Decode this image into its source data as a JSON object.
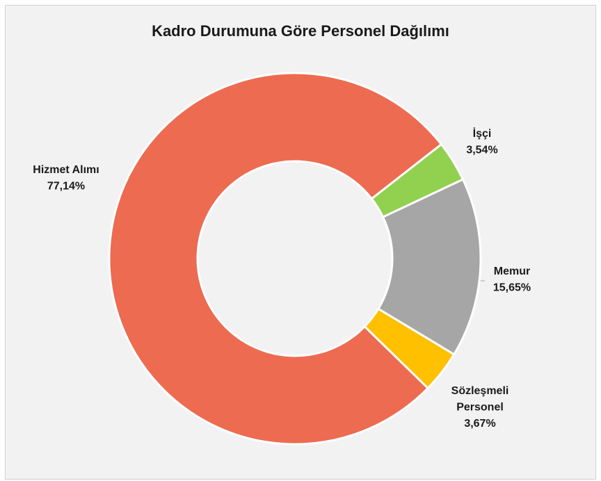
{
  "chart_data": {
    "type": "donut",
    "title": "Kadro Durumuna Göre Personel Dağılımı",
    "categories": [
      "İşçi",
      "Memur",
      "Sözleşmeli Personel",
      "Hizmet Alımı"
    ],
    "values": [
      3.54,
      15.65,
      3.67,
      77.14
    ],
    "value_labels": [
      "3,54%",
      "15,65%",
      "3,67%",
      "77,14%"
    ],
    "colors": [
      "#92d050",
      "#a6a6a6",
      "#ffc000",
      "#ed6b50"
    ]
  }
}
